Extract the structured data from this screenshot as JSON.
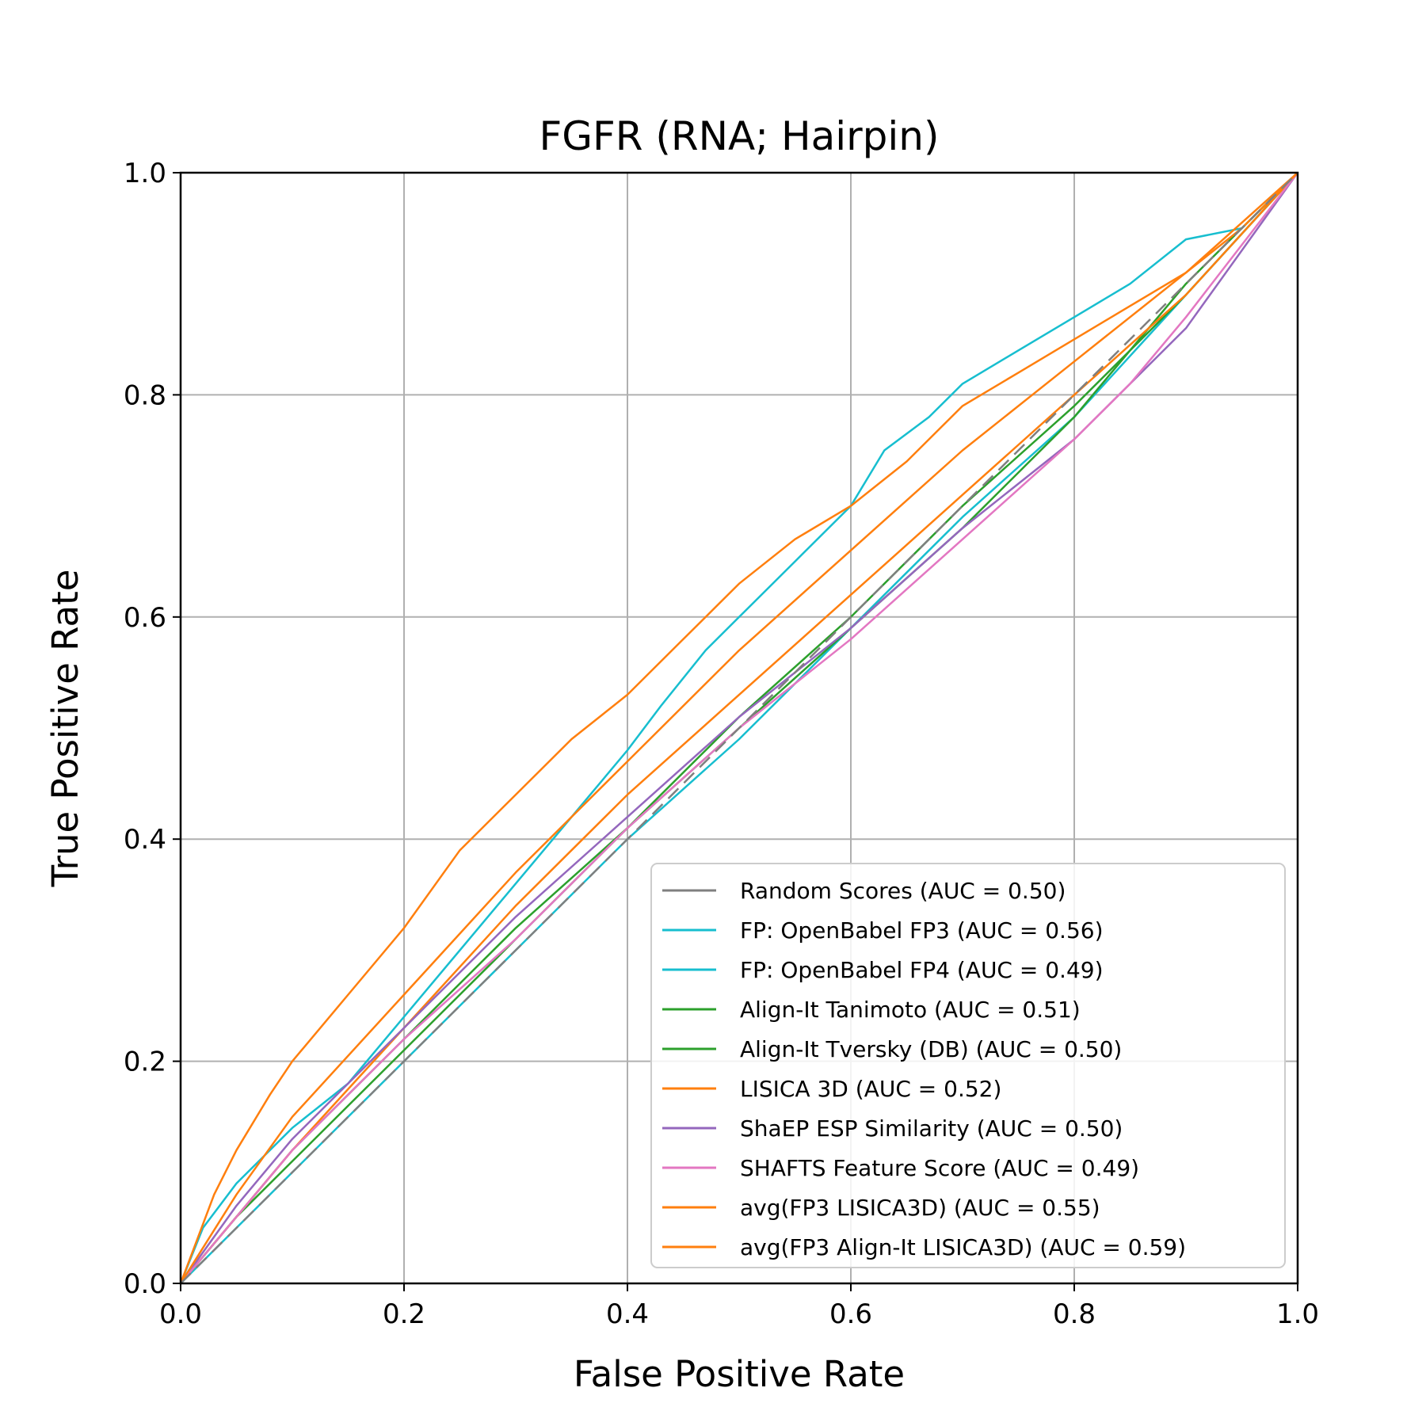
{
  "chart_data": {
    "type": "line",
    "title": "FGFR (RNA; Hairpin)",
    "xlabel": "False Positive Rate",
    "ylabel": "True Positive Rate",
    "xlim": [
      0,
      1
    ],
    "ylim": [
      0,
      1
    ],
    "xticks": [
      "0.0",
      "0.2",
      "0.4",
      "0.6",
      "0.8",
      "1.0"
    ],
    "yticks": [
      "0.0",
      "0.2",
      "0.4",
      "0.6",
      "0.8",
      "1.0"
    ],
    "grid": true,
    "legend_position": "lower-right",
    "series": [
      {
        "name": "Random Scores (AUC = 0.50)",
        "color": "#7f7f7f",
        "dashed": true,
        "x": [
          0,
          0.1,
          0.2,
          0.3,
          0.4,
          0.5,
          0.6,
          0.7,
          0.8,
          0.9,
          1.0
        ],
        "y": [
          0,
          0.1,
          0.2,
          0.3,
          0.4,
          0.5,
          0.6,
          0.7,
          0.8,
          0.9,
          1.0
        ]
      },
      {
        "name": "FP: OpenBabel FP3 (AUC = 0.56)",
        "color": "#17becf",
        "x": [
          0,
          0.02,
          0.05,
          0.08,
          0.1,
          0.15,
          0.2,
          0.25,
          0.3,
          0.35,
          0.4,
          0.43,
          0.47,
          0.5,
          0.55,
          0.6,
          0.63,
          0.67,
          0.7,
          0.75,
          0.8,
          0.85,
          0.9,
          0.95,
          1.0
        ],
        "y": [
          0,
          0.05,
          0.09,
          0.12,
          0.14,
          0.18,
          0.24,
          0.3,
          0.36,
          0.42,
          0.48,
          0.52,
          0.57,
          0.6,
          0.65,
          0.7,
          0.75,
          0.78,
          0.81,
          0.84,
          0.87,
          0.9,
          0.94,
          0.95,
          1.0
        ]
      },
      {
        "name": "FP: OpenBabel FP4 (AUC = 0.49)",
        "color": "#17becf",
        "x": [
          0,
          0.05,
          0.1,
          0.2,
          0.3,
          0.4,
          0.5,
          0.6,
          0.7,
          0.8,
          0.9,
          1.0
        ],
        "y": [
          0,
          0.05,
          0.1,
          0.2,
          0.3,
          0.4,
          0.49,
          0.59,
          0.69,
          0.78,
          0.89,
          1.0
        ]
      },
      {
        "name": "Align-It Tanimoto (AUC = 0.51)",
        "color": "#2ca02c",
        "x": [
          0,
          0.05,
          0.1,
          0.2,
          0.3,
          0.4,
          0.5,
          0.6,
          0.7,
          0.8,
          0.9,
          1.0
        ],
        "y": [
          0,
          0.06,
          0.12,
          0.22,
          0.32,
          0.41,
          0.51,
          0.6,
          0.7,
          0.79,
          0.89,
          1.0
        ]
      },
      {
        "name": "Align-It Tversky (DB) (AUC = 0.50)",
        "color": "#2ca02c",
        "x": [
          0,
          0.05,
          0.1,
          0.2,
          0.3,
          0.4,
          0.5,
          0.6,
          0.7,
          0.8,
          0.9,
          1.0
        ],
        "y": [
          0,
          0.06,
          0.11,
          0.21,
          0.31,
          0.41,
          0.5,
          0.59,
          0.68,
          0.78,
          0.9,
          1.0
        ]
      },
      {
        "name": "LISICA 3D (AUC = 0.52)",
        "color": "#ff7f0e",
        "x": [
          0,
          0.05,
          0.1,
          0.2,
          0.3,
          0.4,
          0.5,
          0.6,
          0.7,
          0.8,
          0.9,
          1.0
        ],
        "y": [
          0,
          0.06,
          0.12,
          0.23,
          0.34,
          0.44,
          0.53,
          0.62,
          0.71,
          0.8,
          0.89,
          1.0
        ]
      },
      {
        "name": "ShaEP ESP Similarity (AUC = 0.50)",
        "color": "#9467bd",
        "x": [
          0,
          0.05,
          0.1,
          0.2,
          0.3,
          0.4,
          0.5,
          0.6,
          0.7,
          0.8,
          0.9,
          1.0
        ],
        "y": [
          0,
          0.07,
          0.13,
          0.23,
          0.33,
          0.42,
          0.51,
          0.59,
          0.68,
          0.76,
          0.86,
          1.0
        ]
      },
      {
        "name": "SHAFTS Feature Score (AUC = 0.49)",
        "color": "#e377c2",
        "x": [
          0,
          0.05,
          0.1,
          0.2,
          0.3,
          0.4,
          0.5,
          0.6,
          0.7,
          0.8,
          0.85,
          0.9,
          1.0
        ],
        "y": [
          0,
          0.06,
          0.12,
          0.22,
          0.31,
          0.41,
          0.5,
          0.58,
          0.67,
          0.76,
          0.81,
          0.87,
          1.0
        ]
      },
      {
        "name": "avg(FP3 LISICA3D) (AUC = 0.55)",
        "color": "#ff7f0e",
        "x": [
          0,
          0.05,
          0.1,
          0.2,
          0.3,
          0.4,
          0.5,
          0.6,
          0.7,
          0.8,
          0.9,
          1.0
        ],
        "y": [
          0,
          0.08,
          0.15,
          0.26,
          0.37,
          0.47,
          0.57,
          0.66,
          0.75,
          0.83,
          0.91,
          1.0
        ]
      },
      {
        "name": "avg(FP3 Align-It LISICA3D) (AUC = 0.59)",
        "color": "#ff7f0e",
        "x": [
          0,
          0.03,
          0.05,
          0.08,
          0.1,
          0.15,
          0.2,
          0.25,
          0.3,
          0.35,
          0.4,
          0.45,
          0.5,
          0.55,
          0.6,
          0.65,
          0.7,
          0.75,
          0.8,
          0.85,
          0.9,
          0.95,
          1.0
        ],
        "y": [
          0,
          0.08,
          0.12,
          0.17,
          0.2,
          0.26,
          0.32,
          0.39,
          0.44,
          0.49,
          0.53,
          0.58,
          0.63,
          0.67,
          0.7,
          0.74,
          0.79,
          0.82,
          0.85,
          0.88,
          0.91,
          0.95,
          1.0
        ]
      }
    ]
  }
}
